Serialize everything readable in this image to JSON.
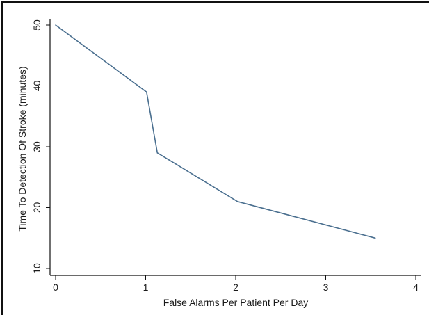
{
  "chart_data": {
    "type": "line",
    "title": "",
    "xlabel": "False Alarms Per Patient Per Day",
    "ylabel": "Time To Detection Of Stroke (minutes)",
    "xlim": [
      0,
      4
    ],
    "ylim": [
      10,
      50
    ],
    "x_ticks": [
      0,
      1,
      2,
      3,
      4
    ],
    "y_ticks": [
      10,
      20,
      30,
      40,
      50
    ],
    "x_tick_labels": [
      "0",
      "1",
      "2",
      "3",
      "4"
    ],
    "y_tick_labels": [
      "10",
      "20",
      "30",
      "40",
      "50"
    ],
    "grid": false,
    "legend": "none",
    "series": [
      {
        "color": "#4a6f8f",
        "points": [
          {
            "x": 0.0,
            "y": 50
          },
          {
            "x": 1.01,
            "y": 39
          },
          {
            "x": 1.13,
            "y": 29
          },
          {
            "x": 2.02,
            "y": 21
          },
          {
            "x": 3.55,
            "y": 15
          }
        ]
      }
    ]
  },
  "colors": {
    "frame": "#111111",
    "axis": "#111111",
    "line": "#4a6f8f"
  }
}
